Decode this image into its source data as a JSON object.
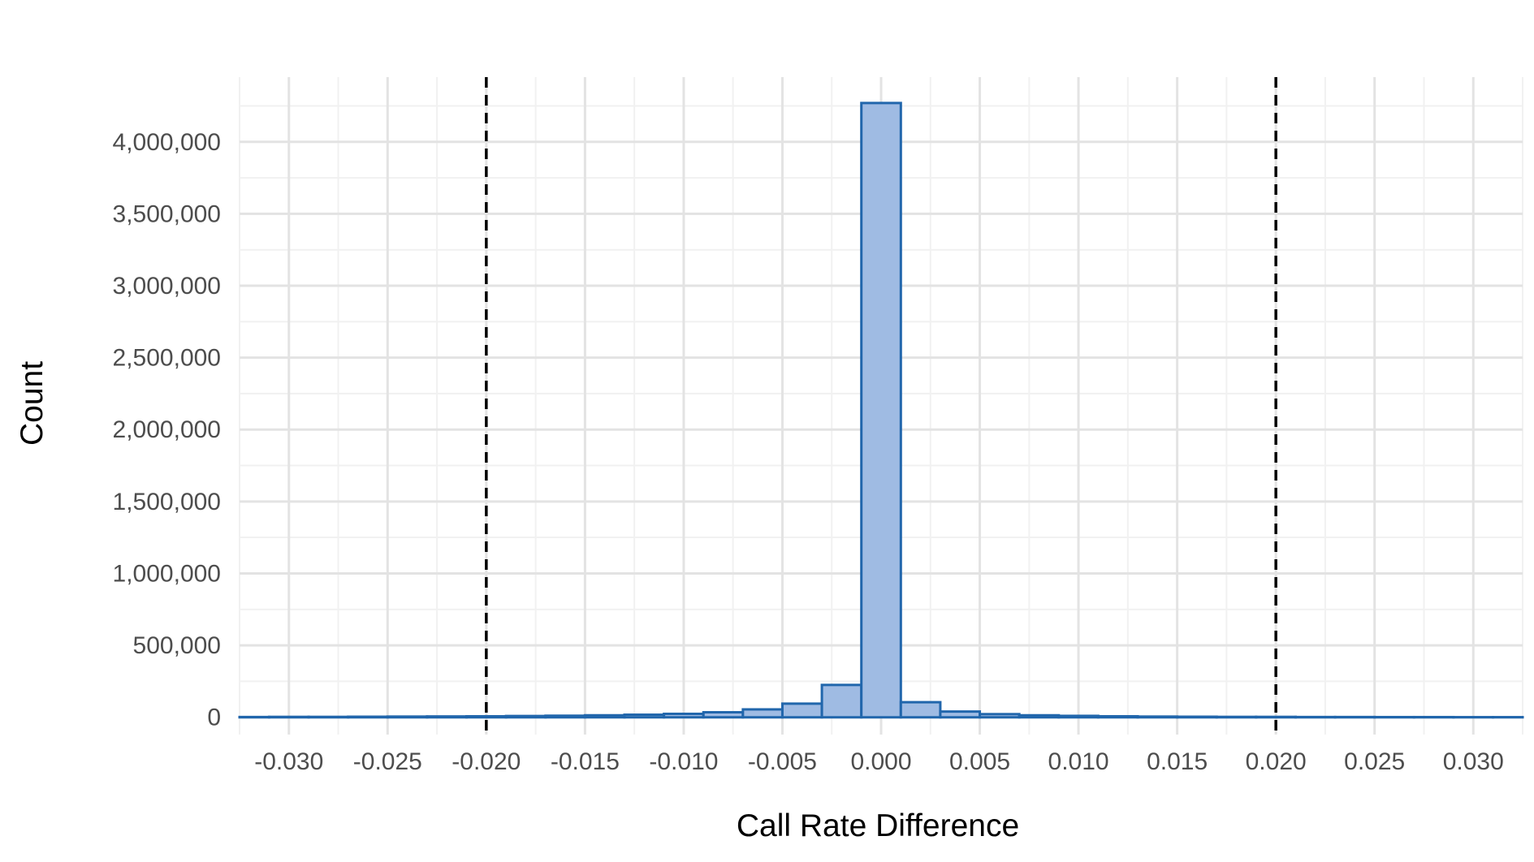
{
  "chart_data": {
    "type": "bar",
    "title": "",
    "xlabel": "Call Rate Difference",
    "ylabel": "Count",
    "xlim": [
      -0.0325,
      0.0325
    ],
    "ylim": [
      -120000,
      4450000
    ],
    "grid": true,
    "x_ticks": [
      -0.03,
      -0.025,
      -0.02,
      -0.015,
      -0.01,
      -0.005,
      0.0,
      0.005,
      0.01,
      0.015,
      0.02,
      0.025,
      0.03
    ],
    "x_tick_labels": [
      "-0.030",
      "-0.025",
      "-0.020",
      "-0.015",
      "-0.010",
      "-0.005",
      "0.000",
      "0.005",
      "0.010",
      "0.015",
      "0.020",
      "0.025",
      "0.030"
    ],
    "y_ticks": [
      0,
      500000,
      1000000,
      1500000,
      2000000,
      2500000,
      3000000,
      3500000,
      4000000
    ],
    "y_tick_labels": [
      "0",
      "500,000",
      "1,000,000",
      "1,500,000",
      "2,000,000",
      "2,500,000",
      "3,000,000",
      "3,500,000",
      "4,000,000"
    ],
    "bin_width": 0.002,
    "bins": [
      {
        "x0": -0.033,
        "x1": -0.031,
        "count": 2000
      },
      {
        "x0": -0.031,
        "x1": -0.029,
        "count": 3000
      },
      {
        "x0": -0.029,
        "x1": -0.027,
        "count": 3000
      },
      {
        "x0": -0.027,
        "x1": -0.025,
        "count": 4000
      },
      {
        "x0": -0.025,
        "x1": -0.023,
        "count": 5000
      },
      {
        "x0": -0.023,
        "x1": -0.021,
        "count": 6000
      },
      {
        "x0": -0.021,
        "x1": -0.019,
        "count": 7000
      },
      {
        "x0": -0.019,
        "x1": -0.017,
        "count": 9000
      },
      {
        "x0": -0.017,
        "x1": -0.015,
        "count": 11000
      },
      {
        "x0": -0.015,
        "x1": -0.013,
        "count": 14000
      },
      {
        "x0": -0.013,
        "x1": -0.011,
        "count": 18000
      },
      {
        "x0": -0.011,
        "x1": -0.009,
        "count": 24000
      },
      {
        "x0": -0.009,
        "x1": -0.007,
        "count": 35000
      },
      {
        "x0": -0.007,
        "x1": -0.005,
        "count": 55000
      },
      {
        "x0": -0.005,
        "x1": -0.003,
        "count": 95000
      },
      {
        "x0": -0.003,
        "x1": -0.001,
        "count": 225000
      },
      {
        "x0": -0.001,
        "x1": 0.001,
        "count": 4270000
      },
      {
        "x0": 0.001,
        "x1": 0.003,
        "count": 105000
      },
      {
        "x0": 0.003,
        "x1": 0.005,
        "count": 40000
      },
      {
        "x0": 0.005,
        "x1": 0.007,
        "count": 22000
      },
      {
        "x0": 0.007,
        "x1": 0.009,
        "count": 14000
      },
      {
        "x0": 0.009,
        "x1": 0.011,
        "count": 10000
      },
      {
        "x0": 0.011,
        "x1": 0.013,
        "count": 7000
      },
      {
        "x0": 0.013,
        "x1": 0.015,
        "count": 5000
      },
      {
        "x0": 0.015,
        "x1": 0.017,
        "count": 4000
      },
      {
        "x0": 0.017,
        "x1": 0.019,
        "count": 3000
      },
      {
        "x0": 0.019,
        "x1": 0.021,
        "count": 3000
      },
      {
        "x0": 0.021,
        "x1": 0.023,
        "count": 2000
      },
      {
        "x0": 0.023,
        "x1": 0.025,
        "count": 2000
      },
      {
        "x0": 0.025,
        "x1": 0.027,
        "count": 1500
      },
      {
        "x0": 0.027,
        "x1": 0.029,
        "count": 1500
      },
      {
        "x0": 0.029,
        "x1": 0.031,
        "count": 1000
      },
      {
        "x0": 0.031,
        "x1": 0.033,
        "count": 1000
      }
    ],
    "reference_lines": [
      -0.02,
      0.02
    ],
    "colors": {
      "bar_fill": "#9fbbe3",
      "bar_stroke": "#2166ac",
      "grid_major": "#e3e3e3",
      "grid_minor": "#f1f1f1",
      "reference_line": "#000000",
      "tick_text": "#4d4d4d",
      "axis_title": "#000000"
    }
  }
}
